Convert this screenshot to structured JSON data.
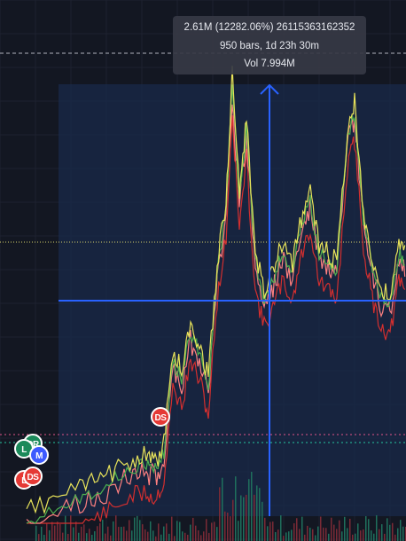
{
  "tooltip": {
    "line1": "2.61M (12282.06%) 26115363162352",
    "line2": "950 bars, 1d 23h 30m",
    "line3": "Vol 7.994M"
  },
  "markers": [
    {
      "label": "DS",
      "color": "#e53935"
    },
    {
      "label": "DR",
      "color": "#1b8a5a"
    },
    {
      "label": "L",
      "color": "#1b8a5a"
    },
    {
      "label": "M",
      "color": "#3d5afe"
    },
    {
      "label": "L",
      "color": "#e53935"
    },
    {
      "label": "DS",
      "color": "#e53935"
    }
  ],
  "colors": {
    "background": "#131722",
    "measure_fill": "#1a2a4a",
    "crosshair": "#2962ff",
    "series_yellow": "#e8e35a",
    "series_green": "#4caf50",
    "series_pink": "#ff8080",
    "series_red": "#d32f2f"
  },
  "chart_data": {
    "type": "line",
    "series": [
      {
        "color": "#e8e35a"
      },
      {
        "color": "#4caf50"
      },
      {
        "color": "#ff8080"
      },
      {
        "color": "#d32f2f"
      }
    ],
    "measure": {
      "change": "2.61M",
      "percent": "12282.06%",
      "bars": 950,
      "duration": "1d 23h 30m",
      "volume": "7.994M"
    },
    "grid": true
  }
}
